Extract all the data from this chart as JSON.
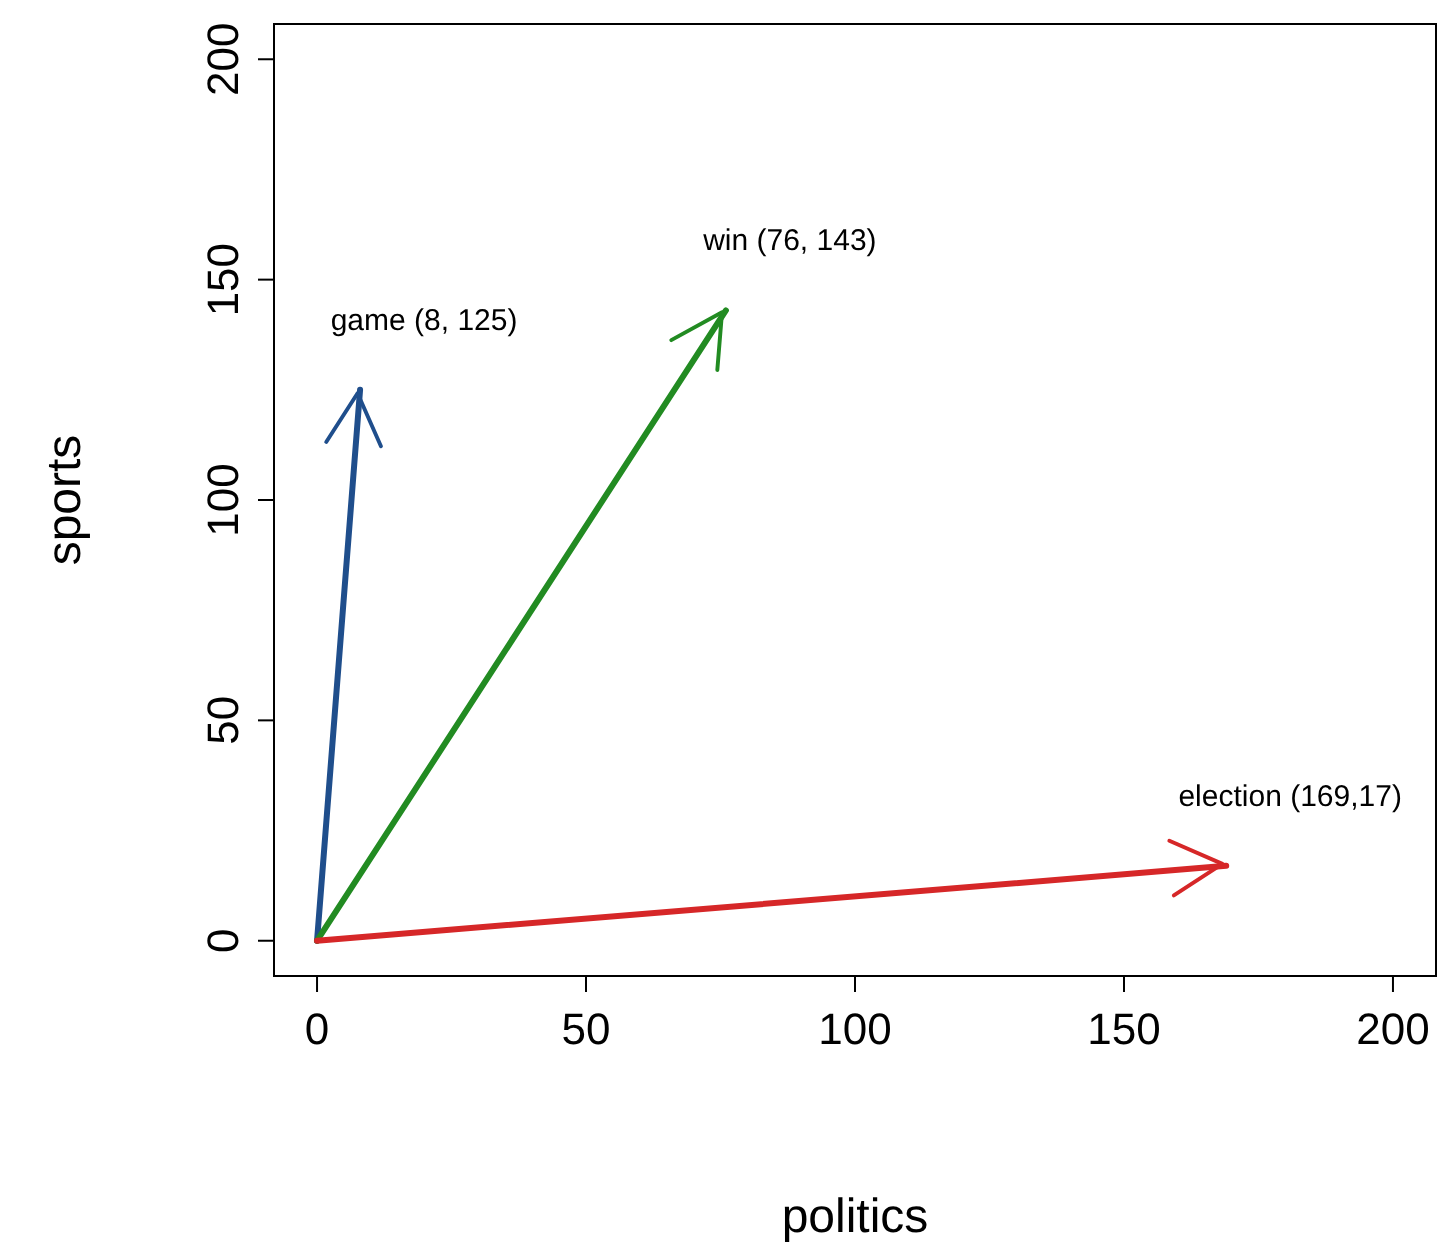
{
  "chart_data": {
    "type": "line",
    "xlabel": "politics",
    "ylabel": "sports",
    "xlim": [
      -8,
      208
    ],
    "ylim": [
      -8,
      208
    ],
    "xticks": [
      0,
      50,
      100,
      150,
      200
    ],
    "yticks": [
      0,
      50,
      100,
      150,
      200
    ],
    "grid": false,
    "marker": "none",
    "line_style": "solid",
    "series": [
      {
        "color": "#1f4e8c",
        "x": [
          0,
          8
        ],
        "values": [
          0,
          125
        ]
      },
      {
        "color": "#228b22",
        "x": [
          0,
          76
        ],
        "values": [
          0,
          143
        ]
      },
      {
        "color": "#d62728",
        "x": [
          0,
          169
        ],
        "values": [
          0,
          17
        ]
      }
    ],
    "annotations": [
      {
        "text": "game (8, 125)",
        "x": 8,
        "y": 125
      },
      {
        "text": "win (76, 143)",
        "x": 76,
        "y": 143
      },
      {
        "text": "election (169,17)",
        "x": 169,
        "y": 17
      }
    ]
  }
}
